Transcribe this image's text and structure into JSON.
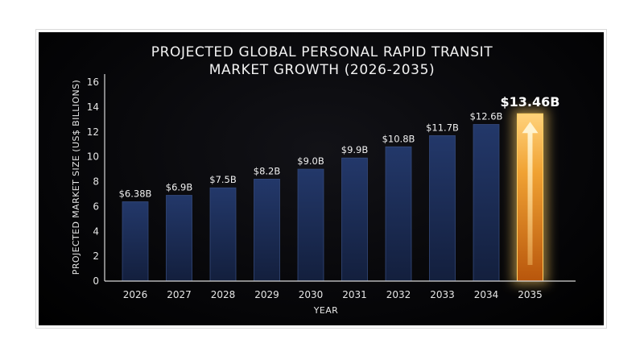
{
  "chart_data": {
    "type": "bar",
    "title_lines": [
      "PROJECTED GLOBAL PERSONAL RAPID TRANSIT",
      "MARKET GROWTH (2026-2035)"
    ],
    "xlabel": "YEAR",
    "ylabel": "PROJECTED MARKET SIZE (US$ BILLIONS)",
    "ylim": [
      0,
      16
    ],
    "yticks": [
      "0",
      "2",
      "4",
      "6",
      "8",
      "10",
      "12",
      "14",
      "16"
    ],
    "grid": false,
    "categories": [
      "2026",
      "2027",
      "2028",
      "2029",
      "2030",
      "2031",
      "2032",
      "2033",
      "2034",
      "2035"
    ],
    "values": [
      6.38,
      6.9,
      7.5,
      8.2,
      9.0,
      9.9,
      10.8,
      11.7,
      12.6,
      13.46
    ],
    "data_labels": [
      "$6.38B",
      "$6.9B",
      "$7.5B",
      "$8.2B",
      "$9.0B",
      "$9.9B",
      "$10.8B",
      "$11.7B",
      "$12.6B",
      "$13.46B"
    ],
    "highlight_index": 9
  },
  "colors": {
    "bar_fill": "#1c2e57",
    "bar_edge": "#34497a",
    "highlight_fill": "#e08a1c",
    "highlight_glow": "#ffcf63",
    "axis": "#d8d8d8"
  }
}
